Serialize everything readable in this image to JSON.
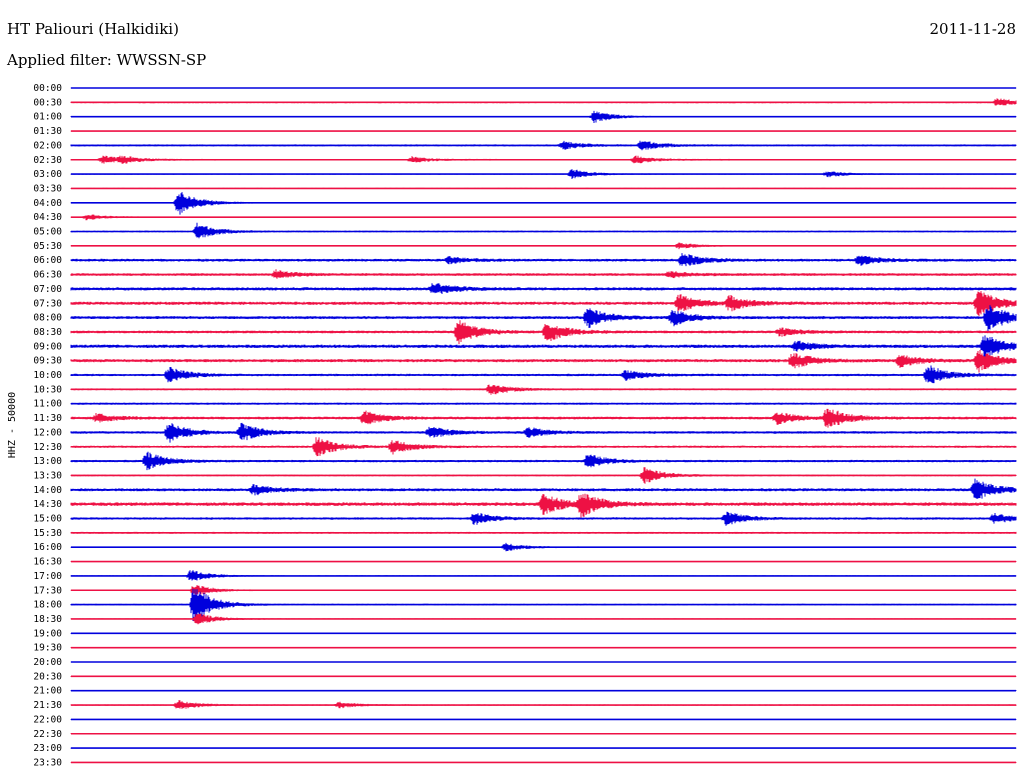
{
  "header": {
    "title": "HT Paliouri (Halkidiki)",
    "date": "2011-11-28",
    "filter": "Applied filter: WWSSN-SP"
  },
  "chart_data": {
    "type": "line",
    "ylabel": "HHZ - 50000",
    "colors": {
      "a": "#0000dd",
      "b": "#ee1144"
    },
    "x": {
      "unit": "minutes",
      "range": [
        0,
        30
      ]
    },
    "rows": [
      {
        "label": "00:00",
        "color": "a",
        "noise": 0.4,
        "events": []
      },
      {
        "label": "00:30",
        "color": "b",
        "noise": 0.9,
        "events": [
          {
            "t": 29.4,
            "amp": 4
          }
        ]
      },
      {
        "label": "01:00",
        "color": "a",
        "noise": 0.6,
        "events": [
          {
            "t": 16.6,
            "amp": 6
          }
        ]
      },
      {
        "label": "01:30",
        "color": "b",
        "noise": 0.5,
        "events": []
      },
      {
        "label": "02:00",
        "color": "a",
        "noise": 1.0,
        "events": [
          {
            "t": 15.6,
            "amp": 4
          },
          {
            "t": 18.1,
            "amp": 5
          }
        ]
      },
      {
        "label": "02:30",
        "color": "b",
        "noise": 0.8,
        "events": [
          {
            "t": 1.0,
            "amp": 4
          },
          {
            "t": 1.6,
            "amp": 3
          },
          {
            "t": 10.8,
            "amp": 3
          },
          {
            "t": 17.9,
            "amp": 4
          }
        ]
      },
      {
        "label": "03:00",
        "color": "a",
        "noise": 0.6,
        "events": [
          {
            "t": 15.9,
            "amp": 5
          },
          {
            "t": 24.0,
            "amp": 3
          }
        ]
      },
      {
        "label": "03:30",
        "color": "b",
        "noise": 0.6,
        "events": []
      },
      {
        "label": "04:00",
        "color": "a",
        "noise": 0.7,
        "events": [
          {
            "t": 3.4,
            "amp": 13
          }
        ]
      },
      {
        "label": "04:30",
        "color": "b",
        "noise": 0.6,
        "events": [
          {
            "t": 0.5,
            "amp": 3
          }
        ]
      },
      {
        "label": "05:00",
        "color": "a",
        "noise": 0.9,
        "events": [
          {
            "t": 4.0,
            "amp": 8
          }
        ]
      },
      {
        "label": "05:30",
        "color": "b",
        "noise": 0.6,
        "events": [
          {
            "t": 19.3,
            "amp": 3
          }
        ]
      },
      {
        "label": "06:00",
        "color": "a",
        "noise": 1.4,
        "events": [
          {
            "t": 12.0,
            "amp": 3
          },
          {
            "t": 19.4,
            "amp": 7
          },
          {
            "t": 25.0,
            "amp": 5
          }
        ]
      },
      {
        "label": "06:30",
        "color": "b",
        "noise": 1.4,
        "events": [
          {
            "t": 6.5,
            "amp": 4
          },
          {
            "t": 19.0,
            "amp": 3
          }
        ]
      },
      {
        "label": "07:00",
        "color": "a",
        "noise": 1.6,
        "events": [
          {
            "t": 11.5,
            "amp": 6
          }
        ]
      },
      {
        "label": "07:30",
        "color": "b",
        "noise": 1.6,
        "events": [
          {
            "t": 19.3,
            "amp": 9
          },
          {
            "t": 20.9,
            "amp": 7
          },
          {
            "t": 28.8,
            "amp": 14
          }
        ]
      },
      {
        "label": "08:00",
        "color": "a",
        "noise": 1.5,
        "events": [
          {
            "t": 16.4,
            "amp": 10
          },
          {
            "t": 19.1,
            "amp": 8
          },
          {
            "t": 29.1,
            "amp": 15
          }
        ]
      },
      {
        "label": "08:30",
        "color": "b",
        "noise": 1.4,
        "events": [
          {
            "t": 12.3,
            "amp": 12
          },
          {
            "t": 15.1,
            "amp": 10
          },
          {
            "t": 22.5,
            "amp": 4
          }
        ]
      },
      {
        "label": "09:00",
        "color": "a",
        "noise": 1.7,
        "events": [
          {
            "t": 23.0,
            "amp": 5
          },
          {
            "t": 29.0,
            "amp": 12
          }
        ]
      },
      {
        "label": "09:30",
        "color": "b",
        "noise": 1.6,
        "events": [
          {
            "t": 22.9,
            "amp": 8
          },
          {
            "t": 26.3,
            "amp": 6
          },
          {
            "t": 28.8,
            "amp": 11
          }
        ]
      },
      {
        "label": "10:00",
        "color": "a",
        "noise": 1.2,
        "events": [
          {
            "t": 3.1,
            "amp": 8
          },
          {
            "t": 17.6,
            "amp": 5
          },
          {
            "t": 27.2,
            "amp": 10
          }
        ]
      },
      {
        "label": "10:30",
        "color": "b",
        "noise": 1.0,
        "events": [
          {
            "t": 13.3,
            "amp": 6
          }
        ]
      },
      {
        "label": "11:00",
        "color": "a",
        "noise": 1.1,
        "events": []
      },
      {
        "label": "11:30",
        "color": "b",
        "noise": 1.4,
        "events": [
          {
            "t": 0.8,
            "amp": 4
          },
          {
            "t": 9.3,
            "amp": 7
          },
          {
            "t": 22.4,
            "amp": 6
          },
          {
            "t": 24.0,
            "amp": 11
          }
        ]
      },
      {
        "label": "12:00",
        "color": "a",
        "noise": 1.3,
        "events": [
          {
            "t": 3.1,
            "amp": 10
          },
          {
            "t": 5.4,
            "amp": 9
          },
          {
            "t": 11.4,
            "amp": 6
          },
          {
            "t": 14.5,
            "amp": 5
          }
        ]
      },
      {
        "label": "12:30",
        "color": "b",
        "noise": 1.2,
        "events": [
          {
            "t": 7.8,
            "amp": 10
          },
          {
            "t": 10.2,
            "amp": 7
          }
        ]
      },
      {
        "label": "13:00",
        "color": "a",
        "noise": 1.2,
        "events": [
          {
            "t": 2.4,
            "amp": 9
          },
          {
            "t": 16.4,
            "amp": 7
          }
        ]
      },
      {
        "label": "13:30",
        "color": "b",
        "noise": 0.9,
        "events": [
          {
            "t": 18.2,
            "amp": 8
          }
        ]
      },
      {
        "label": "14:00",
        "color": "a",
        "noise": 1.5,
        "events": [
          {
            "t": 5.8,
            "amp": 5
          },
          {
            "t": 28.7,
            "amp": 11
          }
        ]
      },
      {
        "label": "14:30",
        "color": "b",
        "noise": 1.8,
        "events": [
          {
            "t": 15.0,
            "amp": 10
          },
          {
            "t": 16.2,
            "amp": 12
          }
        ]
      },
      {
        "label": "15:00",
        "color": "a",
        "noise": 1.2,
        "events": [
          {
            "t": 12.8,
            "amp": 6
          },
          {
            "t": 20.8,
            "amp": 7
          },
          {
            "t": 29.3,
            "amp": 5
          }
        ]
      },
      {
        "label": "15:30",
        "color": "b",
        "noise": 1.0,
        "events": []
      },
      {
        "label": "16:00",
        "color": "a",
        "noise": 0.7,
        "events": [
          {
            "t": 13.8,
            "amp": 4
          }
        ]
      },
      {
        "label": "16:30",
        "color": "b",
        "noise": 0.5,
        "events": []
      },
      {
        "label": "17:00",
        "color": "a",
        "noise": 0.6,
        "events": [
          {
            "t": 3.8,
            "amp": 6
          }
        ]
      },
      {
        "label": "17:30",
        "color": "b",
        "noise": 0.6,
        "events": [
          {
            "t": 3.9,
            "amp": 6
          }
        ]
      },
      {
        "label": "18:00",
        "color": "a",
        "noise": 0.8,
        "events": [
          {
            "t": 3.9,
            "amp": 20
          }
        ]
      },
      {
        "label": "18:30",
        "color": "b",
        "noise": 0.6,
        "events": [
          {
            "t": 4.0,
            "amp": 6
          }
        ]
      },
      {
        "label": "19:00",
        "color": "a",
        "noise": 0.4,
        "events": []
      },
      {
        "label": "19:30",
        "color": "b",
        "noise": 0.6,
        "events": []
      },
      {
        "label": "20:00",
        "color": "a",
        "noise": 0.5,
        "events": []
      },
      {
        "label": "20:30",
        "color": "b",
        "noise": 0.4,
        "events": []
      },
      {
        "label": "21:00",
        "color": "a",
        "noise": 0.5,
        "events": []
      },
      {
        "label": "21:30",
        "color": "b",
        "noise": 0.7,
        "events": [
          {
            "t": 3.4,
            "amp": 5
          },
          {
            "t": 8.5,
            "amp": 3
          }
        ]
      },
      {
        "label": "22:00",
        "color": "a",
        "noise": 0.4,
        "events": []
      },
      {
        "label": "22:30",
        "color": "b",
        "noise": 0.5,
        "events": []
      },
      {
        "label": "23:00",
        "color": "a",
        "noise": 0.4,
        "events": []
      },
      {
        "label": "23:30",
        "color": "b",
        "noise": 0.5,
        "events": []
      }
    ]
  }
}
